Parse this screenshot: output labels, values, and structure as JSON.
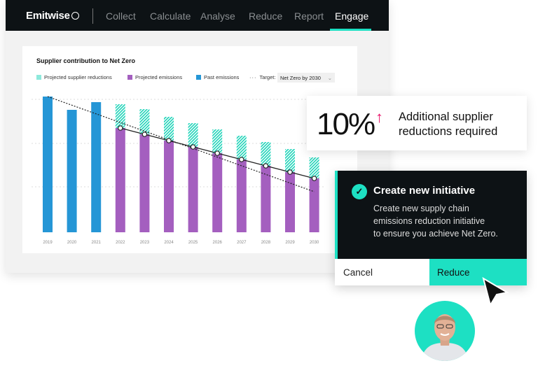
{
  "nav": {
    "logo": "Emitwise",
    "items": [
      "Collect",
      "Calculate",
      "Analyse",
      "Reduce",
      "Report",
      "Engage"
    ],
    "active": "Engage"
  },
  "colors": {
    "accent": "#1de0c3",
    "past": "#2596d6",
    "projected": "#a45fbf",
    "arrow": "#e8146a",
    "dark": "#0d1215"
  },
  "chart_data": {
    "type": "bar",
    "title": "Supplier contribution to Net Zero",
    "legend": [
      "Projected supplier reductions",
      "Projected emissions",
      "Past emissions"
    ],
    "target_label": "Target:",
    "target_value": "Net Zero by 2030",
    "categories": [
      "2019",
      "2020",
      "2021",
      "2022",
      "2023",
      "2024",
      "2025",
      "2026",
      "2027",
      "2028",
      "2029",
      "2030"
    ],
    "series": [
      {
        "name": "Past emissions",
        "values": [
          194,
          175,
          186,
          null,
          null,
          null,
          null,
          null,
          null,
          null,
          null,
          null
        ]
      },
      {
        "name": "Projected emissions",
        "values": [
          null,
          null,
          null,
          149,
          140,
          131,
          122,
          113,
          104,
          95,
          86,
          77
        ]
      },
      {
        "name": "Projected supplier reductions",
        "values": [
          null,
          null,
          null,
          34,
          36,
          34,
          34,
          34,
          34,
          34,
          33,
          30
        ]
      }
    ],
    "target_line": {
      "start": 194,
      "end": 58
    },
    "ylim": [
      0,
      200
    ],
    "grid": true,
    "legend_position": "top-left"
  },
  "stat": {
    "value": "10%",
    "icon": "arrow-up-icon",
    "text_line1": "Additional supplier",
    "text_line2": "reductions required"
  },
  "dialog": {
    "icon": "check-circle-icon",
    "title": "Create new initiative",
    "body_lines": [
      "Create new supply chain",
      "emissions reduction initiative",
      "to ensure you achieve Net Zero."
    ],
    "cancel": "Cancel",
    "reduce": "Reduce"
  }
}
